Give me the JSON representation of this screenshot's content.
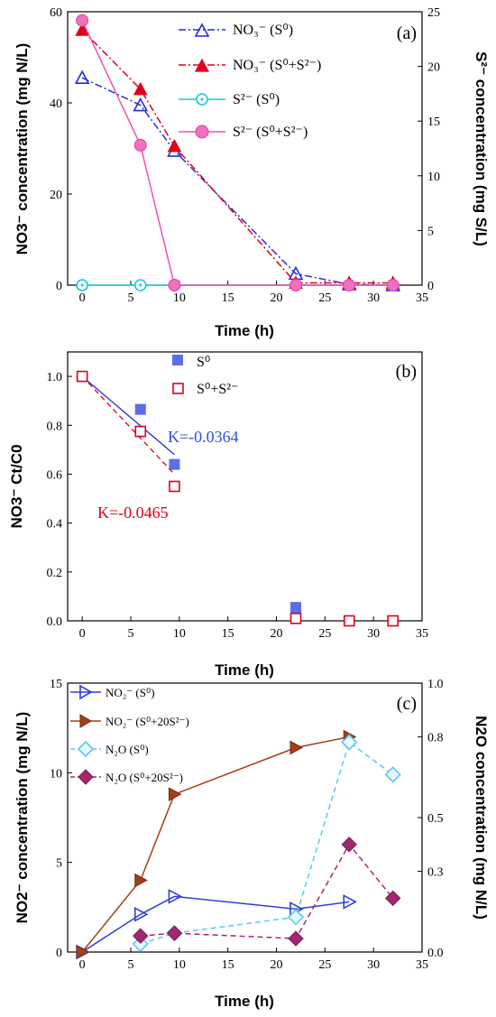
{
  "chart_data": [
    {
      "panel": "(a)",
      "type": "line",
      "xlabel": "Time (h)",
      "ylabel": "NO3⁻ concentration (mg N/L)",
      "y2label": "S²⁻ concentration (mg S/L)",
      "xlim": [
        0,
        35
      ],
      "ylim": [
        0,
        60
      ],
      "y2lim": [
        0,
        25
      ],
      "xticks": [
        "0",
        "5",
        "10",
        "15",
        "20",
        "25",
        "30",
        "35"
      ],
      "yticks": [
        "0",
        "20",
        "40",
        "60"
      ],
      "y2ticks": [
        "0",
        "5",
        "10",
        "15",
        "20",
        "25"
      ],
      "legend": [
        "NO₃⁻ (S⁰)",
        "NO₃⁻ (S⁰+S²⁻)",
        "S²⁻ (S⁰)",
        "S²⁻ (S⁰+S²⁻)"
      ],
      "series": [
        {
          "name": "NO₃⁻ (S⁰)",
          "axis": "left",
          "color": "#1f2fd6",
          "marker": "triangle-open",
          "dash": "dashdot",
          "x": [
            0,
            6,
            9.5,
            22,
            27.5,
            32
          ],
          "y": [
            45.5,
            39.5,
            29.5,
            2.5,
            0.2,
            0
          ]
        },
        {
          "name": "NO₃⁻ (S⁰+S²⁻)",
          "axis": "left",
          "color": "#e0001b",
          "marker": "triangle-filled",
          "dash": "dashdot",
          "x": [
            0,
            6,
            9.5,
            22,
            27.5,
            32
          ],
          "y": [
            56,
            43,
            30.5,
            0.5,
            0.5,
            0.5
          ]
        },
        {
          "name": "S²⁻ (S⁰)",
          "axis": "right",
          "color": "#18c8d8",
          "marker": "circle-dot",
          "dash": "solid",
          "x": [
            0,
            6,
            9.5,
            22,
            27.5,
            32
          ],
          "y": [
            0,
            0,
            0,
            0,
            0,
            0
          ]
        },
        {
          "name": "S²⁻ (S⁰+S²⁻)",
          "axis": "right",
          "color": "#f050b0",
          "marker": "circle-filled",
          "dash": "solid",
          "x": [
            0,
            6,
            9.5,
            22,
            27.5,
            32
          ],
          "y": [
            24.2,
            12.8,
            0,
            0,
            0,
            0
          ]
        }
      ]
    },
    {
      "panel": "(b)",
      "type": "scatter",
      "xlabel": "Time (h)",
      "ylabel": "NO3⁻ Ct/C0",
      "xlim": [
        0,
        35
      ],
      "ylim": [
        0,
        1.1
      ],
      "xticks": [
        "0",
        "5",
        "10",
        "15",
        "20",
        "25",
        "30",
        "35"
      ],
      "yticks": [
        "0.0",
        "0.2",
        "0.4",
        "0.6",
        "0.8",
        "1.0"
      ],
      "legend": [
        "S⁰",
        "S⁰+S²⁻"
      ],
      "annotations": [
        "K=-0.0364",
        "K=-0.0465"
      ],
      "series": [
        {
          "name": "S⁰",
          "color": "#5a6ee8",
          "marker": "square-filled",
          "x": [
            0,
            6,
            9.5,
            22,
            27.5,
            32
          ],
          "y": [
            1.0,
            0.865,
            0.64,
            0.055,
            0,
            0
          ],
          "fit": {
            "x": [
              0,
              9.5
            ],
            "y": [
              1.0,
              0.68
            ],
            "dash": "solid",
            "color": "#1f2fd6"
          }
        },
        {
          "name": "S⁰+S²⁻",
          "color": "#e0001b",
          "marker": "square-open",
          "x": [
            0,
            6,
            9.5,
            22,
            27.5,
            32
          ],
          "y": [
            1.0,
            0.775,
            0.55,
            0.01,
            0,
            0
          ],
          "fit": {
            "x": [
              0,
              9.5
            ],
            "y": [
              1.0,
              0.6
            ],
            "dash": "dashed",
            "color": "#e0001b"
          }
        }
      ]
    },
    {
      "panel": "(c)",
      "type": "line",
      "xlabel": "Time (h)",
      "ylabel": "NO2⁻ concentration (mg N/L)",
      "y2label": "N2O concentration (mg N/L)",
      "xlim": [
        0,
        35
      ],
      "ylim": [
        0,
        15
      ],
      "y2lim": [
        0,
        1.0
      ],
      "xticks": [
        "0",
        "5",
        "10",
        "15",
        "20",
        "25",
        "30",
        "35"
      ],
      "yticks": [
        "0",
        "5",
        "10",
        "15"
      ],
      "y2ticks": [
        "0.0",
        "0.3",
        "0.5",
        "0.8",
        "1.0"
      ],
      "legend": [
        "NO₂⁻ (S⁰)",
        "NO₂⁻ (S⁰+20S²⁻)",
        "N₂O (S⁰)",
        "N₂O (S⁰+20S²⁻)"
      ],
      "series": [
        {
          "name": "NO₂⁻ (S⁰)",
          "axis": "left",
          "color": "#2f3fd8",
          "marker": "right-tri-open",
          "dash": "solid",
          "x": [
            0,
            6,
            9.5,
            22,
            27.5
          ],
          "y": [
            0,
            2.1,
            3.1,
            2.4,
            2.8
          ]
        },
        {
          "name": "NO₂⁻ (S⁰+20S²⁻)",
          "axis": "left",
          "color": "#a0401a",
          "marker": "right-tri-filled",
          "dash": "solid",
          "x": [
            0,
            6,
            9.5,
            22,
            27.5
          ],
          "y": [
            0,
            4.0,
            8.8,
            11.4,
            12.0
          ]
        },
        {
          "name": "N₂O (S⁰)",
          "axis": "right",
          "color": "#5cc8f0",
          "marker": "diamond-open",
          "dash": "dashed",
          "x": [
            6,
            9.5,
            22,
            27.5,
            32
          ],
          "y": [
            0.03,
            0.07,
            0.13,
            0.78,
            0.66
          ]
        },
        {
          "name": "N₂O (S⁰+20S²⁻)",
          "axis": "right",
          "color": "#a02870",
          "marker": "diamond-filled",
          "dash": "dashed",
          "x": [
            6,
            9.5,
            22,
            27.5,
            32
          ],
          "y": [
            0.06,
            0.07,
            0.05,
            0.4,
            0.2
          ]
        }
      ]
    }
  ]
}
